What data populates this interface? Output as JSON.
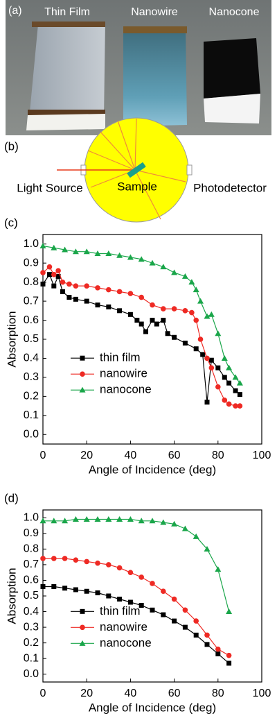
{
  "figure": {
    "panel_a": {
      "label": "(a)",
      "samples": [
        "Thin Film",
        "Nanowire",
        "Nanocone"
      ]
    },
    "panel_b": {
      "label": "(b)",
      "light_source": "Light Source",
      "sample": "Sample",
      "detector": "Photodetector"
    }
  },
  "chart_data": [
    {
      "type": "line",
      "label": "(c)",
      "x_label": "Angle of Incidence (deg)",
      "y_label": "Absorption",
      "xlim": [
        0,
        100
      ],
      "ylim": [
        -0.05,
        1.05
      ],
      "xticks": [
        0,
        20,
        40,
        60,
        80,
        100
      ],
      "yticks": [
        {
          "value": 0,
          "label": "0.0"
        },
        0.1,
        0.2,
        0.3,
        0.4,
        0.5,
        0.6,
        0.7,
        0.8,
        0.9,
        {
          "value": 1,
          "label": "1.0"
        }
      ],
      "legend": "lower left",
      "series": [
        {
          "name": "thin film",
          "color": "#000000",
          "marker": "square",
          "x": [
            0,
            3,
            5,
            7,
            9,
            12,
            15,
            20,
            25,
            30,
            35,
            40,
            43,
            45,
            47,
            50,
            52,
            55,
            57,
            60,
            65,
            70,
            73,
            75,
            77,
            80,
            83,
            85,
            88,
            90
          ],
          "values": [
            0.79,
            0.84,
            0.78,
            0.83,
            0.75,
            0.72,
            0.71,
            0.7,
            0.68,
            0.67,
            0.65,
            0.63,
            0.6,
            0.58,
            0.54,
            0.6,
            0.58,
            0.6,
            0.53,
            0.51,
            0.48,
            0.45,
            0.42,
            0.17,
            0.39,
            0.35,
            0.3,
            0.27,
            0.23,
            0.21
          ]
        },
        {
          "name": "nanowire",
          "color": "#ee2a24",
          "marker": "circle",
          "x": [
            0,
            3,
            5,
            7,
            9,
            12,
            15,
            20,
            25,
            30,
            35,
            40,
            45,
            50,
            55,
            60,
            65,
            68,
            70,
            72,
            75,
            77,
            80,
            83,
            85,
            88,
            90
          ],
          "values": [
            0.85,
            0.88,
            0.84,
            0.86,
            0.8,
            0.79,
            0.78,
            0.78,
            0.77,
            0.76,
            0.75,
            0.74,
            0.72,
            0.68,
            0.66,
            0.66,
            0.65,
            0.64,
            0.6,
            0.5,
            0.4,
            0.35,
            0.25,
            0.18,
            0.16,
            0.15,
            0.15
          ]
        },
        {
          "name": "nanocone",
          "color": "#1aa64a",
          "marker": "triangle",
          "x": [
            0,
            5,
            10,
            15,
            20,
            25,
            30,
            35,
            40,
            45,
            50,
            55,
            60,
            65,
            68,
            70,
            72,
            75,
            77,
            80,
            83,
            85,
            88,
            90
          ],
          "values": [
            0.99,
            0.98,
            0.97,
            0.96,
            0.96,
            0.95,
            0.95,
            0.94,
            0.93,
            0.92,
            0.9,
            0.88,
            0.85,
            0.83,
            0.8,
            0.76,
            0.7,
            0.62,
            0.63,
            0.53,
            0.4,
            0.35,
            0.3,
            0.27
          ]
        }
      ]
    },
    {
      "type": "line",
      "label": "(d)",
      "x_label": "Angle of Incidence (deg)",
      "y_label": "Absorption",
      "xlim": [
        0,
        100
      ],
      "ylim": [
        -0.05,
        1.05
      ],
      "xticks": [
        0,
        20,
        40,
        60,
        80,
        100
      ],
      "yticks": [
        {
          "value": 0,
          "label": "0.0"
        },
        0.1,
        0.2,
        0.3,
        0.4,
        0.5,
        0.6,
        0.7,
        0.8,
        0.9,
        {
          "value": 1,
          "label": "1.0"
        }
      ],
      "legend": "lower left",
      "series": [
        {
          "name": "thin film",
          "color": "#000000",
          "marker": "square",
          "x": [
            0,
            5,
            10,
            15,
            20,
            25,
            30,
            35,
            40,
            45,
            50,
            55,
            60,
            65,
            70,
            75,
            80,
            85
          ],
          "values": [
            0.56,
            0.56,
            0.55,
            0.54,
            0.53,
            0.52,
            0.5,
            0.48,
            0.46,
            0.44,
            0.41,
            0.38,
            0.34,
            0.3,
            0.25,
            0.19,
            0.13,
            0.07
          ]
        },
        {
          "name": "nanowire",
          "color": "#ee2a24",
          "marker": "circle",
          "x": [
            0,
            5,
            10,
            15,
            20,
            25,
            30,
            35,
            40,
            45,
            50,
            55,
            60,
            65,
            70,
            75,
            80,
            85
          ],
          "values": [
            0.74,
            0.74,
            0.74,
            0.73,
            0.72,
            0.71,
            0.7,
            0.68,
            0.65,
            0.62,
            0.58,
            0.53,
            0.48,
            0.41,
            0.34,
            0.25,
            0.16,
            0.12
          ]
        },
        {
          "name": "nanocone",
          "color": "#1aa64a",
          "marker": "triangle",
          "x": [
            0,
            5,
            10,
            15,
            20,
            25,
            30,
            35,
            40,
            45,
            50,
            55,
            60,
            65,
            70,
            75,
            80,
            85
          ],
          "values": [
            0.98,
            0.98,
            0.98,
            0.99,
            0.99,
            0.99,
            0.99,
            0.99,
            0.99,
            0.98,
            0.98,
            0.97,
            0.96,
            0.93,
            0.88,
            0.8,
            0.67,
            0.4
          ]
        }
      ]
    }
  ]
}
